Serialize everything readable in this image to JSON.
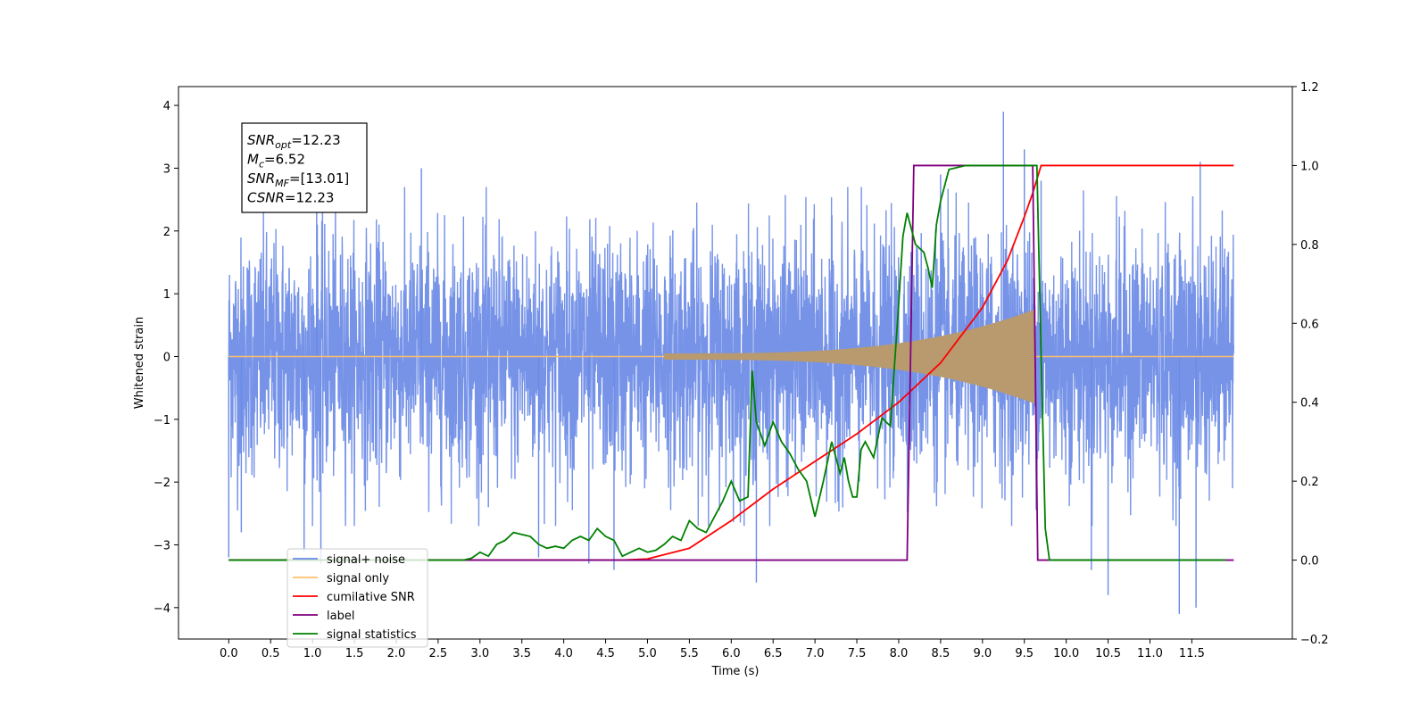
{
  "chart_data": {
    "type": "line",
    "xlabel": "Time (s)",
    "ylabel": "Whitened strain",
    "xlim": [
      -0.6,
      12.7
    ],
    "ylim_left": [
      -4.5,
      4.3
    ],
    "ylim_right": [
      -0.2,
      1.2
    ],
    "x_ticks": [
      0.0,
      0.5,
      1.0,
      1.5,
      2.0,
      2.5,
      3.0,
      3.5,
      4.0,
      4.5,
      5.0,
      5.5,
      6.0,
      6.5,
      7.0,
      7.5,
      8.0,
      8.5,
      9.0,
      9.5,
      10.0,
      10.5,
      11.0,
      11.5
    ],
    "x_tick_labels": [
      "0.0",
      "0.5",
      "1.0",
      "1.5",
      "2.0",
      "2.5",
      "3.0",
      "3.5",
      "4.0",
      "4.5",
      "5.0",
      "5.5",
      "6.0",
      "6.5",
      "7.0",
      "7.5",
      "8.0",
      "8.5",
      "9.0",
      "9.5",
      "10.0",
      "10.5",
      "11.0",
      "11.5"
    ],
    "y_left_ticks": [
      -4,
      -3,
      -2,
      -1,
      0,
      1,
      2,
      3,
      4
    ],
    "y_left_tick_labels": [
      "−4",
      "−3",
      "−2",
      "−1",
      "0",
      "1",
      "2",
      "3",
      "4"
    ],
    "y_right_ticks": [
      -0.2,
      0.0,
      0.2,
      0.4,
      0.6,
      0.8,
      1.0,
      1.2
    ],
    "y_right_tick_labels": [
      "−0.2",
      "0.0",
      "0.2",
      "0.4",
      "0.6",
      "0.8",
      "1.0",
      "1.2"
    ],
    "annotation": [
      {
        "name": "SNR",
        "sub": "opt",
        "value": "=12.23"
      },
      {
        "name": "M",
        "sub": "c",
        "value": "=6.52"
      },
      {
        "name": "SNR",
        "sub": "MF",
        "value": "=[13.01]"
      },
      {
        "name": "CSNR",
        "sub": "",
        "value": "=12.23"
      }
    ],
    "legend_position": "lower-left",
    "series": [
      {
        "name": "signal+ noise",
        "axis": "left",
        "color": "#6a8ae6",
        "kind": "noise",
        "x_range": [
          0.0,
          12.0
        ],
        "typical_amplitude": 2.0,
        "spikes": [
          {
            "x": 0.0,
            "y": -3.2
          },
          {
            "x": 0.15,
            "y": -2.8
          },
          {
            "x": 0.9,
            "y": -3.1
          },
          {
            "x": 1.05,
            "y": 3.0
          },
          {
            "x": 1.1,
            "y": -3.3
          },
          {
            "x": 2.3,
            "y": 3.0
          },
          {
            "x": 3.1,
            "y": -2.4
          },
          {
            "x": 3.7,
            "y": -3.2
          },
          {
            "x": 4.3,
            "y": -3.3
          },
          {
            "x": 4.6,
            "y": -3.4
          },
          {
            "x": 6.3,
            "y": -3.6
          },
          {
            "x": 8.5,
            "y": 2.9
          },
          {
            "x": 9.25,
            "y": 3.9
          },
          {
            "x": 9.5,
            "y": 3.3
          },
          {
            "x": 9.7,
            "y": 2.8
          },
          {
            "x": 10.3,
            "y": -3.4
          },
          {
            "x": 10.5,
            "y": -3.8
          },
          {
            "x": 11.35,
            "y": -4.1
          },
          {
            "x": 11.55,
            "y": -4.0
          },
          {
            "x": 11.6,
            "y": 3.1
          }
        ]
      },
      {
        "name": "signal only",
        "axis": "left",
        "color": "#ffbf69",
        "fill_color": "#b89a6e",
        "kind": "chirp",
        "start": 5.2,
        "end": 9.62,
        "peak_amplitude": 0.75
      },
      {
        "name": "cumilative SNR",
        "axis": "right",
        "color": "#ff0000",
        "x": [
          0.0,
          4.7,
          5.0,
          5.5,
          6.0,
          6.5,
          7.0,
          7.5,
          8.0,
          8.5,
          9.0,
          9.3,
          9.5,
          9.6,
          9.7,
          12.0
        ],
        "y": [
          0.0,
          0.0,
          0.003,
          0.03,
          0.1,
          0.18,
          0.25,
          0.32,
          0.4,
          0.5,
          0.64,
          0.76,
          0.87,
          0.93,
          1.0,
          1.0
        ]
      },
      {
        "name": "label",
        "axis": "right",
        "color": "#800080",
        "x": [
          0.0,
          8.1,
          8.18,
          9.6,
          9.66,
          12.0
        ],
        "y": [
          0.0,
          0.0,
          1.0,
          1.0,
          0.0,
          0.0
        ]
      },
      {
        "name": "signal statistics",
        "axis": "right",
        "color": "#008000",
        "x": [
          0.0,
          2.8,
          2.9,
          3.0,
          3.1,
          3.2,
          3.3,
          3.4,
          3.5,
          3.6,
          3.7,
          3.8,
          3.9,
          4.0,
          4.1,
          4.2,
          4.3,
          4.4,
          4.5,
          4.6,
          4.7,
          4.8,
          4.9,
          5.0,
          5.1,
          5.2,
          5.3,
          5.4,
          5.5,
          5.6,
          5.7,
          5.8,
          5.9,
          6.0,
          6.1,
          6.2,
          6.25,
          6.3,
          6.4,
          6.5,
          6.6,
          6.7,
          6.8,
          6.9,
          7.0,
          7.1,
          7.2,
          7.3,
          7.35,
          7.4,
          7.45,
          7.5,
          7.55,
          7.6,
          7.7,
          7.8,
          7.9,
          8.0,
          8.05,
          8.1,
          8.15,
          8.2,
          8.3,
          8.35,
          8.4,
          8.45,
          8.5,
          8.6,
          8.8,
          9.0,
          9.5,
          9.65,
          9.7,
          9.75,
          9.8,
          11.9
        ],
        "y": [
          0.0,
          0.0,
          0.005,
          0.02,
          0.01,
          0.04,
          0.05,
          0.07,
          0.065,
          0.06,
          0.04,
          0.03,
          0.035,
          0.03,
          0.05,
          0.06,
          0.05,
          0.08,
          0.06,
          0.05,
          0.01,
          0.02,
          0.03,
          0.02,
          0.025,
          0.04,
          0.06,
          0.05,
          0.1,
          0.08,
          0.07,
          0.11,
          0.15,
          0.2,
          0.15,
          0.16,
          0.48,
          0.35,
          0.29,
          0.35,
          0.3,
          0.27,
          0.23,
          0.2,
          0.11,
          0.2,
          0.3,
          0.22,
          0.26,
          0.2,
          0.16,
          0.16,
          0.28,
          0.3,
          0.26,
          0.36,
          0.34,
          0.65,
          0.82,
          0.88,
          0.84,
          0.8,
          0.78,
          0.74,
          0.69,
          0.85,
          0.91,
          0.99,
          1.0,
          1.0,
          1.0,
          1.0,
          0.52,
          0.08,
          0.0,
          0.0
        ]
      }
    ]
  }
}
